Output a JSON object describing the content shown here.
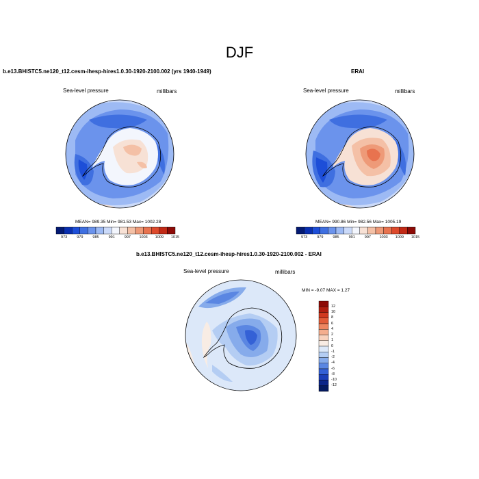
{
  "figure": {
    "title": "DJF",
    "panels": [
      {
        "title": "b.e13.BHISTC5.ne120_t12.cesm-ihesp-hires1.0.30-1920-2100.002 (yrs 1940-1949)",
        "left_label": "Sea-level pressure",
        "right_label": "millibars",
        "stats": "MEAN= 989.35  Min= 981.53  Max= 1002.28"
      },
      {
        "title": "ERAI",
        "left_label": "Sea-level pressure",
        "right_label": "millibars",
        "stats": "MEAN= 990.86  Min= 982.56  Max= 1005.19"
      },
      {
        "title": "b.e13.BHISTC5.ne120_t12.cesm-ihesp-hires1.0.30-1920-2100.002 - ERAI",
        "left_label": "Sea-level pressure",
        "right_label": "millibars",
        "stats": "MIN =  -9.07 MAX =   1.27"
      }
    ]
  },
  "chart_data": [
    {
      "type": "heatmap",
      "title": "b.e13.BHISTC5.ne120_t12.cesm-ihesp-hires1.0.30-1920-2100.002 (yrs 1940-1949)",
      "variable": "Sea-level pressure",
      "units": "millibars",
      "mean": 989.35,
      "min": 981.53,
      "max": 1002.28,
      "colorbar_ticks": [
        "973",
        "979",
        "985",
        "991",
        "997",
        "1003",
        "1009",
        "1015"
      ],
      "colorbar_colors": [
        "#041a73",
        "#0a2fb0",
        "#1d4ed8",
        "#3f6fe0",
        "#6b93ec",
        "#9dbaf4",
        "#cbdaf9",
        "#f3f6fd",
        "#f7e1d5",
        "#f4c0a6",
        "#ee9a78",
        "#e8734f",
        "#dd4a2c",
        "#c22a16",
        "#8d0a06"
      ]
    },
    {
      "type": "heatmap",
      "title": "ERAI",
      "variable": "Sea-level pressure",
      "units": "millibars",
      "mean": 990.86,
      "min": 982.56,
      "max": 1005.19,
      "colorbar_ticks": [
        "973",
        "979",
        "985",
        "991",
        "997",
        "1003",
        "1009",
        "1015"
      ],
      "colorbar_colors": [
        "#041a73",
        "#0a2fb0",
        "#1d4ed8",
        "#3f6fe0",
        "#6b93ec",
        "#9dbaf4",
        "#cbdaf9",
        "#f3f6fd",
        "#f7e1d5",
        "#f4c0a6",
        "#ee9a78",
        "#e8734f",
        "#dd4a2c",
        "#c22a16",
        "#8d0a06"
      ]
    },
    {
      "type": "heatmap",
      "title": "b.e13.BHISTC5.ne120_t12.cesm-ihesp-hires1.0.30-1920-2100.002 - ERAI",
      "variable": "Sea-level pressure",
      "units": "millibars",
      "min": -9.07,
      "max": 1.27,
      "colorbar_ticks": [
        "12",
        "10",
        "8",
        "6",
        "4",
        "2",
        "1",
        "0",
        "-1",
        "-2",
        "-4",
        "-6",
        "-8",
        "-10",
        "-12"
      ],
      "colorbar_colors": [
        "#8d0a06",
        "#b01e10",
        "#d0391f",
        "#e25c38",
        "#ee8660",
        "#f4ae8e",
        "#f8d2bd",
        "#f8ece4",
        "#dce8f9",
        "#b4cdf3",
        "#86abeb",
        "#5a86e2",
        "#3461d6",
        "#1b3fb8",
        "#0b2589",
        "#041a60"
      ]
    }
  ]
}
